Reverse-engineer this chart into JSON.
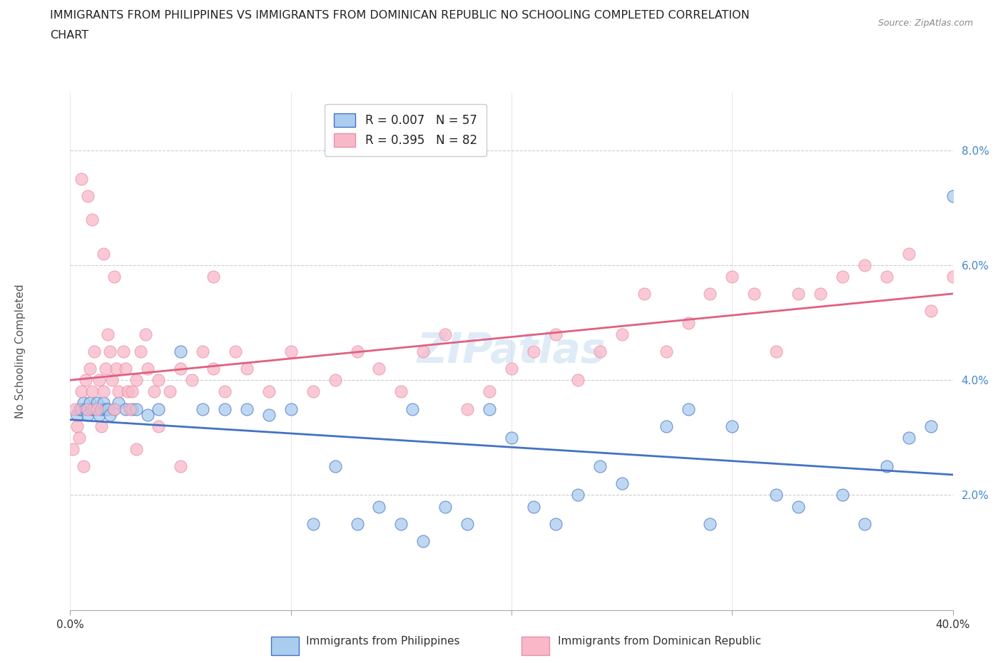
{
  "title_line1": "IMMIGRANTS FROM PHILIPPINES VS IMMIGRANTS FROM DOMINICAN REPUBLIC NO SCHOOLING COMPLETED CORRELATION",
  "title_line2": "CHART",
  "source": "Source: ZipAtlas.com",
  "ylabel": "No Schooling Completed",
  "xlim": [
    0.0,
    40.0
  ],
  "ylim": [
    0.0,
    9.0
  ],
  "ytick_vals": [
    2.0,
    4.0,
    6.0,
    8.0
  ],
  "xtick_vals": [
    0,
    10,
    20,
    30,
    40
  ],
  "color_philippines": "#aaccee",
  "color_dominican": "#f9b8c8",
  "line_philippines": "#4472c4",
  "line_dominican": "#e06080",
  "watermark": "ZIPatlas",
  "legend_label1": "R = 0.007   N = 57",
  "legend_label2": "R = 0.395   N = 82",
  "philippines_x": [
    0.3,
    0.4,
    0.5,
    0.6,
    0.7,
    0.8,
    0.9,
    1.0,
    1.1,
    1.2,
    1.3,
    1.4,
    1.5,
    1.6,
    1.7,
    1.8,
    2.0,
    2.2,
    2.5,
    2.8,
    3.0,
    3.5,
    4.0,
    5.0,
    6.0,
    7.0,
    8.0,
    9.0,
    10.0,
    11.0,
    12.0,
    13.0,
    14.0,
    15.0,
    15.5,
    16.0,
    17.0,
    18.0,
    19.0,
    20.0,
    21.0,
    22.0,
    23.0,
    24.0,
    25.0,
    27.0,
    28.0,
    29.0,
    30.0,
    32.0,
    33.0,
    35.0,
    36.0,
    37.0,
    38.0,
    39.0,
    40.0
  ],
  "philippines_y": [
    3.4,
    3.5,
    3.5,
    3.6,
    3.5,
    3.4,
    3.6,
    3.5,
    3.5,
    3.6,
    3.4,
    3.5,
    3.6,
    3.5,
    3.5,
    3.4,
    3.5,
    3.6,
    3.5,
    3.5,
    3.5,
    3.4,
    3.5,
    4.5,
    3.5,
    3.5,
    3.5,
    3.4,
    3.5,
    1.5,
    2.5,
    1.5,
    1.8,
    1.5,
    3.5,
    1.2,
    1.8,
    1.5,
    3.5,
    3.0,
    1.8,
    1.5,
    2.0,
    2.5,
    2.2,
    3.2,
    3.5,
    1.5,
    3.2,
    2.0,
    1.8,
    2.0,
    1.5,
    2.5,
    3.0,
    3.2,
    7.2
  ],
  "dominican_x": [
    0.1,
    0.2,
    0.3,
    0.4,
    0.5,
    0.6,
    0.7,
    0.8,
    0.9,
    1.0,
    1.1,
    1.2,
    1.3,
    1.4,
    1.5,
    1.6,
    1.7,
    1.8,
    1.9,
    2.0,
    2.1,
    2.2,
    2.4,
    2.5,
    2.6,
    2.7,
    2.8,
    3.0,
    3.2,
    3.4,
    3.5,
    3.8,
    4.0,
    4.5,
    5.0,
    5.5,
    6.0,
    6.5,
    7.0,
    7.5,
    8.0,
    9.0,
    10.0,
    11.0,
    12.0,
    13.0,
    14.0,
    15.0,
    16.0,
    17.0,
    18.0,
    19.0,
    20.0,
    21.0,
    22.0,
    23.0,
    24.0,
    25.0,
    26.0,
    27.0,
    28.0,
    29.0,
    30.0,
    31.0,
    32.0,
    33.0,
    34.0,
    35.0,
    36.0,
    37.0,
    38.0,
    39.0,
    40.0,
    0.5,
    0.8,
    1.0,
    1.5,
    2.0,
    3.0,
    4.0,
    5.0,
    6.5
  ],
  "dominican_y": [
    2.8,
    3.5,
    3.2,
    3.0,
    3.8,
    2.5,
    4.0,
    3.5,
    4.2,
    3.8,
    4.5,
    3.5,
    4.0,
    3.2,
    3.8,
    4.2,
    4.8,
    4.5,
    4.0,
    3.5,
    4.2,
    3.8,
    4.5,
    4.2,
    3.8,
    3.5,
    3.8,
    4.0,
    4.5,
    4.8,
    4.2,
    3.8,
    4.0,
    3.8,
    4.2,
    4.0,
    4.5,
    4.2,
    3.8,
    4.5,
    4.2,
    3.8,
    4.5,
    3.8,
    4.0,
    4.5,
    4.2,
    3.8,
    4.5,
    4.8,
    3.5,
    3.8,
    4.2,
    4.5,
    4.8,
    4.0,
    4.5,
    4.8,
    5.5,
    4.5,
    5.0,
    5.5,
    5.8,
    5.5,
    4.5,
    5.5,
    5.5,
    5.8,
    6.0,
    5.8,
    6.2,
    5.2,
    5.8,
    7.5,
    7.2,
    6.8,
    6.2,
    5.8,
    2.8,
    3.2,
    2.5,
    5.8
  ]
}
